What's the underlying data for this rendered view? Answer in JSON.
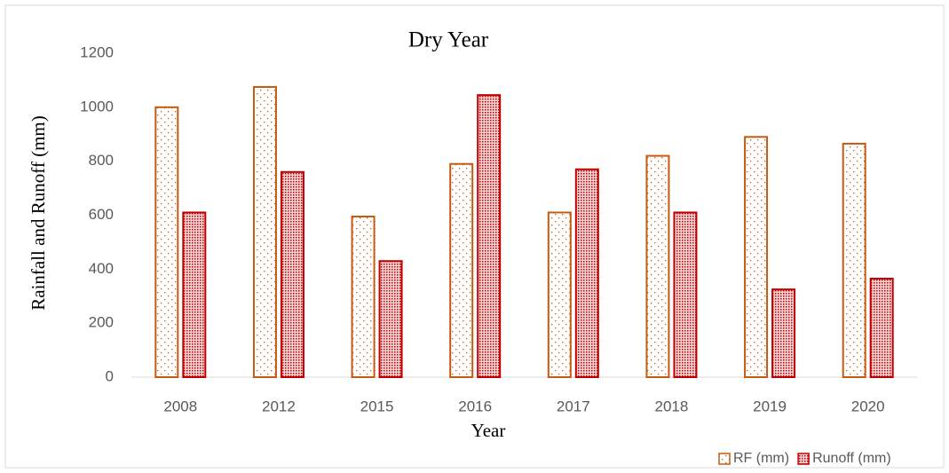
{
  "chart_data": {
    "type": "bar",
    "title": "Dry Year",
    "x_label": "Year",
    "y_label": "Rainfall and Runoff (mm)",
    "categories": [
      "2008",
      "2012",
      "2015",
      "2016",
      "2017",
      "2018",
      "2019",
      "2020"
    ],
    "series": [
      {
        "name": "RF (mm)",
        "color": "#c55a11",
        "values": [
          1000,
          1075,
          595,
          790,
          610,
          820,
          890,
          865
        ]
      },
      {
        "name": "Runoff (mm)",
        "color": "#c00000",
        "values": [
          610,
          760,
          430,
          1045,
          770,
          610,
          325,
          365
        ]
      }
    ],
    "ylim": [
      0,
      1200
    ],
    "yticks": [
      0,
      200,
      400,
      600,
      800,
      1000,
      1200
    ],
    "grid": false,
    "legend": "bottom-right"
  }
}
